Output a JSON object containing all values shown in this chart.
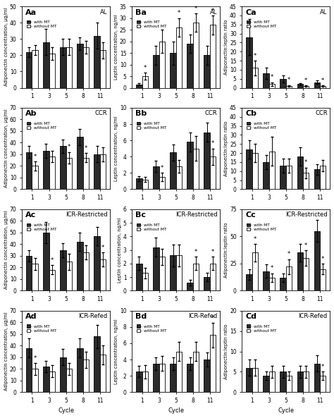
{
  "cycles": [
    1,
    3,
    5,
    8,
    11
  ],
  "panels": {
    "Aa": {
      "label": "Aa",
      "group": "AL",
      "col": 0,
      "row": 0,
      "ylabel": "Adiponectin concentration, μg/ml",
      "ylim": [
        0,
        50
      ],
      "yticks": [
        0,
        10,
        20,
        30,
        40,
        50
      ],
      "with_MT": [
        22,
        28,
        25,
        27,
        32
      ],
      "without_MT": [
        23,
        21,
        25,
        25,
        23
      ],
      "err_with": [
        3,
        8,
        5,
        4,
        8
      ],
      "err_without": [
        3,
        4,
        5,
        4,
        5
      ],
      "sig": [
        false,
        false,
        false,
        false,
        false
      ]
    },
    "Ab": {
      "label": "Ab",
      "group": "CCR",
      "col": 0,
      "row": 1,
      "ylabel": "Adiponectin concentration, μg/ml",
      "ylim": [
        0,
        70
      ],
      "yticks": [
        0,
        10,
        20,
        30,
        40,
        50,
        60,
        70
      ],
      "with_MT": [
        32,
        33,
        37,
        45,
        30
      ],
      "without_MT": [
        20,
        28,
        27,
        27,
        30
      ],
      "err_with": [
        5,
        6,
        6,
        7,
        7
      ],
      "err_without": [
        4,
        5,
        5,
        4,
        6
      ],
      "sig": [
        true,
        false,
        true,
        true,
        false
      ]
    },
    "Ac": {
      "label": "Ac",
      "group": "ICR-Restricted",
      "col": 0,
      "row": 2,
      "ylabel": "Adiponectin concentration, μg/ml",
      "ylim": [
        0,
        70
      ],
      "yticks": [
        0,
        10,
        20,
        30,
        40,
        50,
        60,
        70
      ],
      "with_MT": [
        30,
        50,
        35,
        42,
        47
      ],
      "without_MT": [
        23,
        18,
        25,
        33,
        27
      ],
      "err_with": [
        5,
        9,
        6,
        8,
        8
      ],
      "err_without": [
        5,
        4,
        7,
        6,
        6
      ],
      "sig": [
        false,
        true,
        false,
        false,
        true
      ]
    },
    "Ad": {
      "label": "Ad",
      "group": "ICR-Refed",
      "col": 0,
      "row": 3,
      "ylabel": "Adiponectin concentration, μg/ml",
      "ylim": [
        0,
        70
      ],
      "yticks": [
        0,
        10,
        20,
        30,
        40,
        50,
        60,
        70
      ],
      "with_MT": [
        38,
        22,
        30,
        38,
        48
      ],
      "without_MT": [
        20,
        18,
        20,
        28,
        32
      ],
      "err_with": [
        8,
        5,
        7,
        8,
        10
      ],
      "err_without": [
        5,
        5,
        5,
        7,
        8
      ],
      "sig": [
        true,
        false,
        false,
        false,
        false
      ]
    },
    "Ba": {
      "label": "Ba",
      "group": "AL",
      "col": 1,
      "row": 0,
      "ylabel": "Leptin concentration, ng/ml",
      "ylim": [
        0,
        35
      ],
      "yticks": [
        0,
        5,
        10,
        15,
        20,
        25,
        30,
        35
      ],
      "with_MT": [
        1.5,
        14,
        15,
        19,
        14
      ],
      "without_MT": [
        5,
        20,
        26,
        28,
        27
      ],
      "err_with": [
        0.5,
        4,
        5,
        4,
        4
      ],
      "err_without": [
        1.5,
        5,
        4,
        4,
        4
      ],
      "sig": [
        true,
        false,
        true,
        true,
        true
      ]
    },
    "Bb": {
      "label": "Bb",
      "group": "CCR",
      "col": 1,
      "row": 1,
      "ylabel": "Leptin concentration, ng/ml",
      "ylim": [
        0,
        10
      ],
      "yticks": [
        0,
        2,
        4,
        6,
        8,
        10
      ],
      "with_MT": [
        1.3,
        2.8,
        4.5,
        5.8,
        7.0
      ],
      "without_MT": [
        1.2,
        1.5,
        2.8,
        5.0,
        4.0
      ],
      "err_with": [
        0.3,
        0.7,
        1.0,
        1.2,
        1.2
      ],
      "err_without": [
        0.3,
        0.5,
        0.8,
        1.5,
        1.0
      ],
      "sig": [
        false,
        true,
        false,
        false,
        true
      ]
    },
    "Bc": {
      "label": "Bc",
      "group": "ICR-Restricted",
      "col": 1,
      "row": 2,
      "ylabel": "Leptin concentration, ng/ml",
      "ylim": [
        0,
        6
      ],
      "yticks": [
        0,
        1,
        2,
        3,
        4,
        5,
        6
      ],
      "with_MT": [
        2.0,
        3.2,
        2.6,
        0.6,
        1.0
      ],
      "without_MT": [
        1.3,
        2.5,
        2.6,
        2.0,
        2.0
      ],
      "err_with": [
        0.5,
        0.7,
        0.8,
        0.2,
        0.3
      ],
      "err_without": [
        0.4,
        0.6,
        0.8,
        0.5,
        0.5
      ],
      "sig": [
        false,
        false,
        false,
        true,
        true
      ]
    },
    "Bd": {
      "label": "Bd",
      "group": "ICR-Refed",
      "col": 1,
      "row": 3,
      "ylabel": "Leptin concentration, ng/ml",
      "ylim": [
        0,
        10
      ],
      "yticks": [
        0,
        2,
        4,
        6,
        8,
        10
      ],
      "with_MT": [
        2.5,
        3.5,
        3.5,
        3.5,
        4.0
      ],
      "without_MT": [
        2.5,
        3.5,
        5.0,
        5.0,
        7.0
      ],
      "err_with": [
        0.7,
        0.8,
        0.8,
        0.8,
        0.9
      ],
      "err_without": [
        0.8,
        0.9,
        1.2,
        1.2,
        1.5
      ],
      "sig": [
        false,
        false,
        false,
        false,
        true
      ]
    },
    "Ca": {
      "label": "Ca",
      "group": "AL",
      "col": 2,
      "row": 0,
      "ylabel": "Adiponectin:leptin ratio",
      "ylim": [
        0,
        45
      ],
      "yticks": [
        0,
        5,
        10,
        15,
        20,
        25,
        30,
        35,
        40,
        45
      ],
      "with_MT": [
        28,
        8,
        5,
        2,
        3
      ],
      "without_MT": [
        11,
        2,
        1,
        1,
        1
      ],
      "err_with": [
        10,
        3,
        2,
        0.5,
        1
      ],
      "err_without": [
        4,
        1,
        0.5,
        0.3,
        0.3
      ],
      "sig": [
        true,
        true,
        true,
        true,
        true
      ]
    },
    "Cb": {
      "label": "Cb",
      "group": "CCR",
      "col": 2,
      "row": 1,
      "ylabel": "Adiponectin:leptin ratio",
      "ylim": [
        0,
        45
      ],
      "yticks": [
        0,
        5,
        10,
        15,
        20,
        25,
        30,
        35,
        40,
        45
      ],
      "with_MT": [
        22,
        15,
        13,
        18,
        11
      ],
      "without_MT": [
        20,
        21,
        13,
        9,
        13
      ],
      "err_with": [
        5,
        4,
        4,
        5,
        3
      ],
      "err_without": [
        5,
        8,
        4,
        3,
        3
      ],
      "sig": [
        false,
        false,
        false,
        true,
        false
      ]
    },
    "Cc": {
      "label": "Cc",
      "group": "ICR-Restricted",
      "col": 2,
      "row": 2,
      "ylabel": "Adiponectin:leptin ratio",
      "ylim": [
        0,
        75
      ],
      "yticks": [
        0,
        25,
        50,
        75
      ],
      "with_MT": [
        15,
        18,
        12,
        35,
        55
      ],
      "without_MT": [
        35,
        12,
        22,
        30,
        20
      ],
      "err_with": [
        5,
        6,
        4,
        8,
        10
      ],
      "err_without": [
        8,
        4,
        7,
        7,
        5
      ],
      "sig": [
        true,
        true,
        true,
        true,
        true
      ]
    },
    "Cd": {
      "label": "Cd",
      "group": "ICR-Refed",
      "col": 2,
      "row": 3,
      "ylabel": "Adiponectin:leptin ratio",
      "ylim": [
        0,
        20
      ],
      "yticks": [
        0,
        5,
        10,
        15,
        20
      ],
      "with_MT": [
        6,
        4,
        5,
        5,
        7
      ],
      "without_MT": [
        6,
        5,
        4,
        5,
        4
      ],
      "err_with": [
        2,
        1,
        1.5,
        1.5,
        2
      ],
      "err_without": [
        2,
        1.5,
        1,
        1.5,
        1
      ],
      "sig": [
        false,
        false,
        false,
        false,
        true
      ]
    }
  },
  "bar_width": 0.35,
  "color_with": "#2b2b2b",
  "color_without": "#ffffff",
  "edge_color": "#000000",
  "figsize": [
    4.74,
    5.93
  ],
  "dpi": 100
}
